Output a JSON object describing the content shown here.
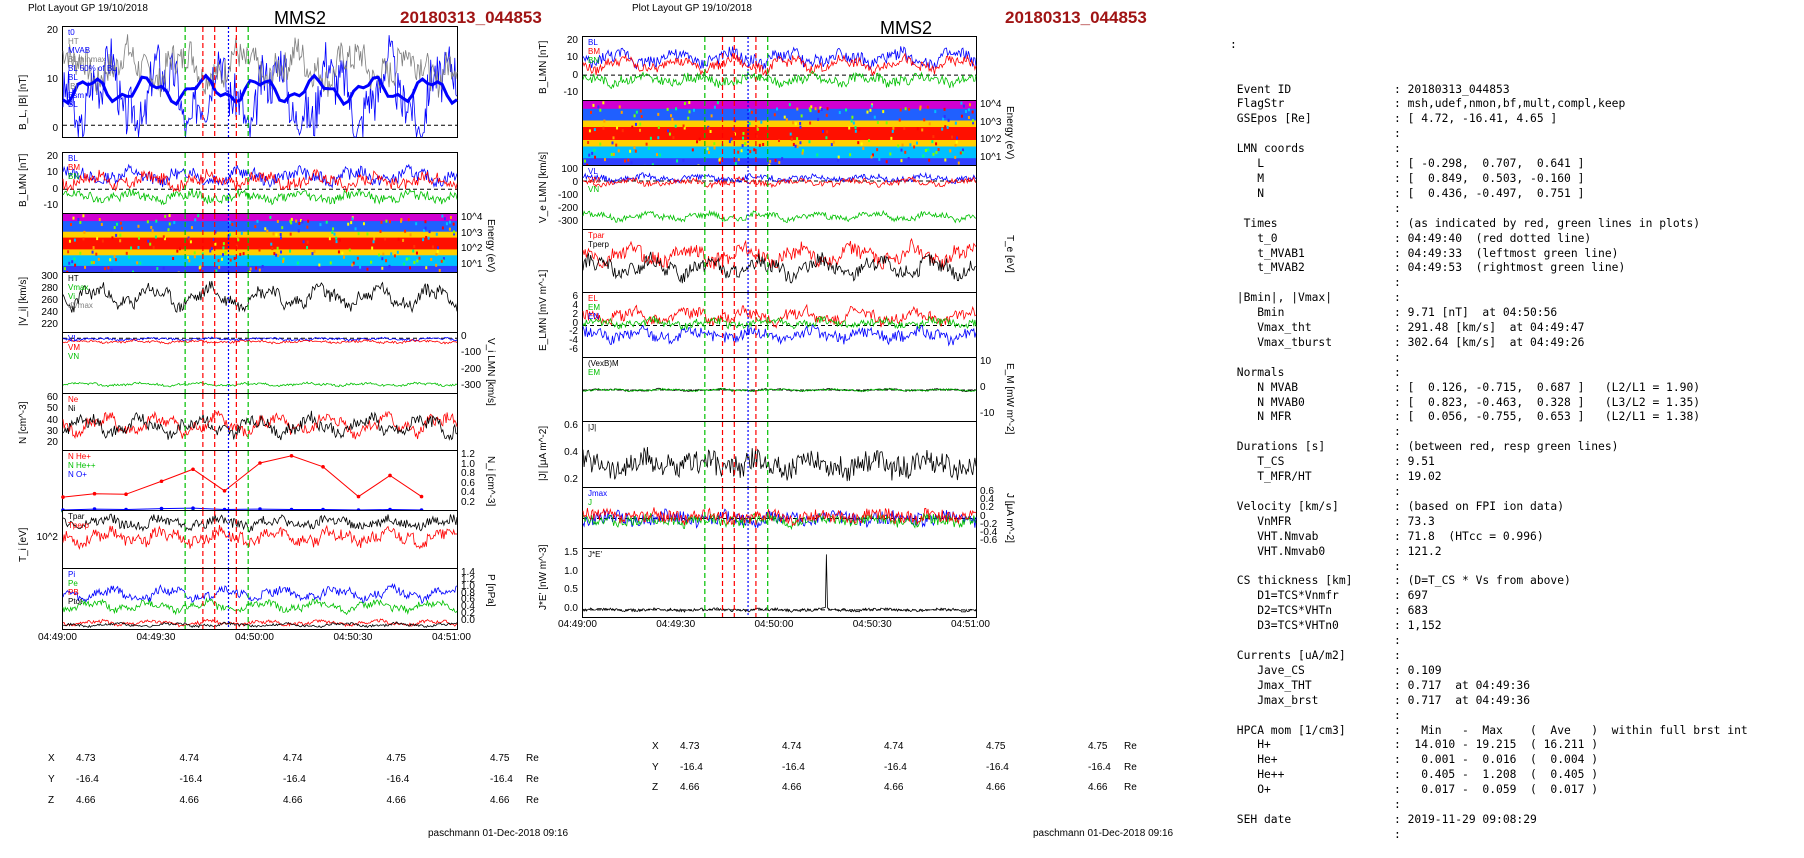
{
  "header": {
    "layout_left": "Plot Layout GP 19/10/2018",
    "layout_mid": "Plot Layout GP 19/10/2018",
    "spacecraft": "MMS2",
    "event": "20180313_044853"
  },
  "footer": {
    "left": "paschmann 01-Dec-2018 09:16",
    "mid": "paschmann 01-Dec-2018 09:16"
  },
  "time_axis": {
    "left_ticks": [
      "04:49:00",
      "04:49:30",
      "04:50:00",
      "04:50:30",
      "04:51:00"
    ],
    "mid_ticks": [
      "04:49:00",
      "04:49:30",
      "04:50:00",
      "04:50:30",
      "04:51:00"
    ]
  },
  "ephemeris": {
    "labels": [
      "X",
      "Y",
      "Z"
    ],
    "unit": "Re",
    "X": [
      "4.73",
      "4.74",
      "4.74",
      "4.75",
      "4.75"
    ],
    "Y": [
      "-16.4",
      "-16.4",
      "-16.4",
      "-16.4",
      "-16.4"
    ],
    "Z": [
      "4.66",
      "4.66",
      "4.66",
      "4.66",
      "4.66"
    ]
  },
  "colors": {
    "red": "#ff0000",
    "green": "#00c000",
    "blue": "#0000ff",
    "black": "#000000",
    "event_red": "#a01414",
    "gray": "#808080",
    "cyan": "#00a0ff",
    "magenta": "#ff00ff"
  },
  "chart_data": [
    {
      "type": "line",
      "id": "BL",
      "ylabel": "B_L, |B| [nT]",
      "yticks": [
        "20",
        "10",
        "0"
      ],
      "ylim": [
        -3,
        25
      ],
      "legend": [
        "t0",
        "HT",
        "MVAB",
        "BLminmax",
        "BL 50% of BL",
        "BL",
        "|B|",
        "Bsm",
        "BL"
      ],
      "series": [
        {
          "name": "BL",
          "color": "#0000ff",
          "mean": 8,
          "amp": 7,
          "noise": 6,
          "seed": 3
        },
        {
          "name": "|B|",
          "color": "#808080",
          "mean": 15,
          "amp": 3,
          "noise": 4,
          "seed": 7
        },
        {
          "name": "Bsm",
          "color": "#0000ff",
          "mean": 9,
          "amp": 2.5,
          "noise": 0,
          "seed": 11,
          "width": 3
        }
      ]
    },
    {
      "type": "line",
      "id": "BLMN",
      "ylabel": "B_LMN [nT]",
      "yticks": [
        "20",
        "10",
        "0",
        "-10"
      ],
      "ylim": [
        -17,
        25
      ],
      "legend": [
        "BL",
        "BM",
        "BN"
      ],
      "series": [
        {
          "name": "BL",
          "color": "#0000ff",
          "mean": 9,
          "amp": 3,
          "noise": 4,
          "seed": 13
        },
        {
          "name": "BM",
          "color": "#ff0000",
          "mean": 6,
          "amp": 3,
          "noise": 4,
          "seed": 17
        },
        {
          "name": "BN",
          "color": "#00c000",
          "mean": -5,
          "amp": 2,
          "noise": 3,
          "seed": 19
        }
      ]
    },
    {
      "type": "heatmap",
      "id": "ion_spec",
      "ylabel": "Energy (eV)",
      "yticks": [
        "10^4",
        "10^3",
        "10^2",
        "10^1"
      ]
    },
    {
      "type": "line",
      "id": "Vi",
      "ylabel": "|V_i| [km/s]",
      "yticks": [
        "300",
        "280",
        "260",
        "240",
        "220"
      ],
      "ylim": [
        205,
        300
      ],
      "legend": [
        "HT",
        "Vmax",
        "Vi",
        "dVmax"
      ],
      "series": [
        {
          "name": "|Vi|",
          "color": "#000000",
          "mean": 262,
          "amp": 12,
          "noise": 10,
          "seed": 23
        }
      ]
    },
    {
      "type": "line",
      "id": "ViLMN",
      "ylabel": "V_i LMN [km/s]",
      "yticks": [
        "0",
        "-100",
        "-200",
        "-300"
      ],
      "ylim": [
        -320,
        30
      ],
      "legend": [
        "VL",
        "VM",
        "VN"
      ],
      "series": [
        {
          "name": "VL",
          "color": "#0000ff",
          "mean": -5,
          "amp": 4,
          "noise": 6,
          "seed": 29
        },
        {
          "name": "VM",
          "color": "#ff0000",
          "mean": -20,
          "amp": 5,
          "noise": 6,
          "seed": 31
        },
        {
          "name": "VN",
          "color": "#00c000",
          "mean": -265,
          "amp": 6,
          "noise": 6,
          "seed": 37
        }
      ]
    },
    {
      "type": "line",
      "id": "N",
      "ylabel": "N [cm^-3]",
      "yticks": [
        "60",
        "50",
        "40",
        "30",
        "20"
      ],
      "ylim": [
        14,
        64
      ],
      "legend": [
        "Ne",
        "Ni"
      ],
      "series": [
        {
          "name": "Ne",
          "color": "#ff0000",
          "mean": 37,
          "amp": 6,
          "noise": 5,
          "seed": 41
        },
        {
          "name": "Ni",
          "color": "#000000",
          "mean": 36,
          "amp": 6,
          "noise": 5,
          "seed": 43
        }
      ]
    },
    {
      "type": "line",
      "id": "HPCA",
      "ylabel": "N_i [cm^-3]",
      "yticks": [
        "1.2",
        "1.0",
        "0.8",
        "0.6",
        "0.4",
        "0.2"
      ],
      "ylim": [
        0,
        1.25
      ],
      "legend": [
        "N He+",
        "N He++",
        "N O+"
      ],
      "series": [
        {
          "name": "N He++",
          "color": "#ff0000",
          "x": [
            0,
            0.08,
            0.16,
            0.25,
            0.33,
            0.41,
            0.5,
            0.58,
            0.66,
            0.75,
            0.83,
            0.91
          ],
          "values": [
            0.29,
            0.36,
            0.35,
            0.62,
            0.87,
            0.42,
            1.0,
            1.15,
            0.92,
            0.3,
            0.74,
            0.3
          ]
        },
        {
          "name": "N He+",
          "color": "#00c000",
          "x": [
            0,
            0.08,
            0.16,
            0.25,
            0.33,
            0.41,
            0.5,
            0.58,
            0.66,
            0.75,
            0.83,
            0.91
          ],
          "values": [
            0.0,
            0.0,
            0.01,
            0.0,
            0.01,
            0.0,
            0.0,
            0.01,
            0.0,
            0.0,
            0.0,
            0.0
          ]
        },
        {
          "name": "N O+",
          "color": "#0000ff",
          "x": [
            0,
            0.08,
            0.16,
            0.25,
            0.33,
            0.41,
            0.5,
            0.58,
            0.66,
            0.75,
            0.83,
            0.91
          ],
          "values": [
            0.02,
            0.04,
            0.03,
            0.05,
            0.06,
            0.03,
            0.04,
            0.03,
            0.03,
            0.02,
            0.03,
            0.02
          ]
        }
      ]
    },
    {
      "type": "line",
      "id": "Ti",
      "ylabel": "T_i [eV]",
      "yticks": [
        "10^2"
      ],
      "ylim": [
        0,
        10
      ],
      "legend": [
        "Tpar",
        "Tperp"
      ],
      "series": [
        {
          "name": "Ti",
          "color": "#000000",
          "mean": 8,
          "amp": 0.6,
          "noise": 0.8,
          "seed": 47
        },
        {
          "name": "Tpar",
          "color": "#ff0000",
          "mean": 5.5,
          "amp": 0.8,
          "noise": 1.0,
          "seed": 53
        }
      ]
    },
    {
      "type": "line",
      "id": "P",
      "ylabel": "P [nPa]",
      "yticks": [
        "1.4",
        "1.2",
        "1.0",
        "0.8",
        "0.6",
        "0.4",
        "0.2",
        "0.0"
      ],
      "ylim": [
        0,
        1.45
      ],
      "legend": [
        "Pi",
        "Pe",
        "PB",
        "Ptot"
      ],
      "series": [
        {
          "name": "Ptot",
          "color": "#0000ff",
          "mean": 0.85,
          "amp": 0.1,
          "noise": 0.1,
          "seed": 59
        },
        {
          "name": "Pi",
          "color": "#00c000",
          "mean": 0.55,
          "amp": 0.08,
          "noise": 0.08,
          "seed": 61
        },
        {
          "name": "Pe",
          "color": "#ff0000",
          "mean": 0.15,
          "amp": 0.04,
          "noise": 0.04,
          "seed": 67
        },
        {
          "name": "PB",
          "color": "#000000",
          "mean": 0.1,
          "amp": 0.03,
          "noise": 0.03,
          "seed": 71
        }
      ]
    },
    {
      "type": "line",
      "id": "m_BLMN",
      "ylabel": "B_LMN [nT]",
      "yticks": [
        "20",
        "10",
        "0",
        "-10"
      ],
      "ylim": [
        -17,
        25
      ],
      "legend": [
        "BL",
        "BM",
        "BN"
      ],
      "series": [
        {
          "name": "BL",
          "color": "#0000ff",
          "mean": 11,
          "amp": 3,
          "noise": 4,
          "seed": 73
        },
        {
          "name": "BM",
          "color": "#ff0000",
          "mean": 7,
          "amp": 3,
          "noise": 3,
          "seed": 79
        },
        {
          "name": "BN",
          "color": "#00c000",
          "mean": -3,
          "amp": 2,
          "noise": 3,
          "seed": 83
        }
      ]
    },
    {
      "type": "heatmap",
      "id": "e_spec",
      "ylabel": "Energy (eV)",
      "yticks": [
        "10^4",
        "10^3",
        "10^2",
        "10^1"
      ]
    },
    {
      "type": "line",
      "id": "VeLMN",
      "ylabel": "V_e LMN [km/s]",
      "yticks": [
        "100",
        "0",
        "-100",
        "-200",
        "-300"
      ],
      "ylim": [
        -360,
        110
      ],
      "legend": [
        "VL",
        "VM",
        "VN"
      ],
      "series": [
        {
          "name": "VL",
          "color": "#0000ff",
          "mean": 20,
          "amp": 15,
          "noise": 20,
          "seed": 89
        },
        {
          "name": "VM",
          "color": "#ff0000",
          "mean": -10,
          "amp": 15,
          "noise": 20,
          "seed": 97
        },
        {
          "name": "VN",
          "color": "#00c000",
          "mean": -260,
          "amp": 20,
          "noise": 20,
          "seed": 101
        }
      ]
    },
    {
      "type": "line",
      "id": "Te",
      "ylabel": "T_e [eV]",
      "yticks": [],
      "ylim": [
        0,
        10
      ],
      "legend": [
        "Tpar",
        "Tperp"
      ],
      "series": [
        {
          "name": "Tpar",
          "color": "#ff0000",
          "mean": 6,
          "amp": 1,
          "noise": 1.1,
          "seed": 103
        },
        {
          "name": "Tperp",
          "color": "#000000",
          "mean": 4,
          "amp": 1,
          "noise": 1.1,
          "seed": 107
        }
      ]
    },
    {
      "type": "line",
      "id": "ELMN",
      "ylabel": "E_LMN [mV m^-1]",
      "yticks": [
        "6",
        "4",
        "2",
        "0",
        "-2",
        "-4",
        "-6"
      ],
      "ylim": [
        -7,
        7
      ],
      "legend": [
        "EL",
        "EM",
        "EN"
      ],
      "series": [
        {
          "name": "EM",
          "color": "#ff0000",
          "mean": 2,
          "amp": 1,
          "noise": 1.2,
          "seed": 109
        },
        {
          "name": "EL",
          "color": "#00c000",
          "mean": 0.5,
          "amp": 0.5,
          "noise": 0.8,
          "seed": 113
        },
        {
          "name": "EN",
          "color": "#0000ff",
          "mean": -2,
          "amp": 0.8,
          "noise": 1.2,
          "seed": 127
        }
      ]
    },
    {
      "type": "line",
      "id": "EM",
      "ylabel": "E_M [mW m^-2]",
      "yticks": [
        "10",
        "0",
        "-10"
      ],
      "ylim": [
        -15,
        15
      ],
      "legend": [
        "(VexB)M",
        "EM"
      ],
      "series": [
        {
          "name": "(VexB)M",
          "color": "#000000",
          "mean": 0,
          "amp": 0.3,
          "noise": 0.4,
          "seed": 131
        },
        {
          "name": "EM",
          "color": "#00c000",
          "mean": 0,
          "amp": 0.3,
          "noise": 0.4,
          "seed": 137
        }
      ]
    },
    {
      "type": "line",
      "id": "Jmag",
      "ylabel": "|J| [μA m^-2]",
      "yticks": [
        "0.6",
        "0.4",
        "0.2"
      ],
      "ylim": [
        0,
        0.7
      ],
      "legend": [
        "|J|"
      ],
      "series": [
        {
          "name": "|J|",
          "color": "#000000",
          "mean": 0.25,
          "amp": 0.05,
          "noise": 0.12,
          "seed": 139
        }
      ]
    },
    {
      "type": "line",
      "id": "JLMN",
      "ylabel": "J [μA m^-2]",
      "yticks": [
        "0.6",
        "0.4",
        "0.2",
        "0",
        "-0.2",
        "-0.4",
        "-0.6"
      ],
      "ylim": [
        -0.7,
        0.7
      ],
      "legend": [
        "Jmax",
        "J"
      ],
      "series": [
        {
          "name": "JL",
          "color": "#0000ff",
          "mean": 0,
          "amp": 0.05,
          "noise": 0.15,
          "seed": 149
        },
        {
          "name": "JN",
          "color": "#00c000",
          "mean": -0.05,
          "amp": 0.05,
          "noise": 0.12,
          "seed": 151
        },
        {
          "name": "JM",
          "color": "#ff0000",
          "mean": 0.05,
          "amp": 0.05,
          "noise": 0.15,
          "seed": 157
        }
      ]
    },
    {
      "type": "line",
      "id": "JE",
      "ylabel": "J*E' [nW m^-3]",
      "yticks": [
        "1.5",
        "1.0",
        "0.5",
        "0.0"
      ],
      "ylim": [
        -0.2,
        1.7
      ],
      "legend": [
        "J*E'"
      ],
      "series": [
        {
          "name": "J*E'",
          "color": "#000000",
          "mean": 0,
          "amp": 0.02,
          "noise": 0.04,
          "seed": 163,
          "spike": [
            0.62,
            1.55
          ]
        }
      ]
    }
  ],
  "info": {
    "title_colon": ":",
    "rows": [
      [
        "Event ID",
        ": 20180313_044853"
      ],
      [
        "FlagStr",
        ": msh,udef,nmon,bf,mult,compl,keep"
      ],
      [
        "GSEpos [Re]",
        ": [ 4.72, -16.41, 4.65 ]"
      ],
      [
        "",
        ":"
      ],
      [
        "LMN coords",
        ":"
      ],
      [
        "   L",
        ": [ -0.298,  0.707,  0.641 ]"
      ],
      [
        "   M",
        ": [  0.849,  0.503, -0.160 ]"
      ],
      [
        "   N",
        ": [  0.436, -0.497,  0.751 ]"
      ],
      [
        "",
        ":"
      ],
      [
        " Times",
        ": (as indicated by red, green lines in plots)"
      ],
      [
        "   t_0",
        ": 04:49:40  (red dotted line)"
      ],
      [
        "   t_MVAB1",
        ": 04:49:33  (leftmost green line)"
      ],
      [
        "   t_MVAB2",
        ": 04:49:53  (rightmost green line)"
      ],
      [
        "",
        ":"
      ],
      [
        "|Bmin|, |Vmax|",
        ":"
      ],
      [
        "   Bmin",
        ": 9.71 [nT]  at 04:50:56"
      ],
      [
        "   Vmax_tht",
        ": 291.48 [km/s]  at 04:49:47"
      ],
      [
        "   Vmax_tburst",
        ": 302.64 [km/s]  at 04:49:26"
      ],
      [
        "",
        ":"
      ],
      [
        "Normals",
        ":"
      ],
      [
        "   N MVAB",
        ": [  0.126, -0.715,  0.687 ]   (L2/L1 = 1.90)"
      ],
      [
        "   N MVAB0",
        ": [  0.823, -0.463,  0.328 ]   (L3/L2 = 1.35)"
      ],
      [
        "   N MFR",
        ": [  0.056, -0.755,  0.653 ]   (L2/L1 = 1.38)"
      ],
      [
        "",
        ":"
      ],
      [
        "Durations [s]",
        ": (between red, resp green lines)"
      ],
      [
        "   T_CS",
        ": 9.51"
      ],
      [
        "   T_MFR/HT",
        ": 19.02"
      ],
      [
        "",
        ":"
      ],
      [
        "Velocity [km/s]",
        ": (based on FPI ion data)"
      ],
      [
        "   VnMFR",
        ": 73.3"
      ],
      [
        "   VHT.Nmvab",
        ": 71.8  (HTcc = 0.996)"
      ],
      [
        "   VHT.Nmvab0",
        ": 121.2"
      ],
      [
        "",
        ":"
      ],
      [
        "CS thickness [km]",
        ": (D=T_CS * Vs from above)"
      ],
      [
        "   D1=TCS*Vnmfr",
        ": 697"
      ],
      [
        "   D2=TCS*VHTn",
        ": 683"
      ],
      [
        "   D3=TCS*VHTn0",
        ": 1,152"
      ],
      [
        "",
        ":"
      ],
      [
        "Currents [uA/m2]",
        ":"
      ],
      [
        "   Jave_CS",
        ": 0.109"
      ],
      [
        "   Jmax_THT",
        ": 0.717  at 04:49:36"
      ],
      [
        "   Jmax_brst",
        ": 0.717  at 04:49:36"
      ],
      [
        "",
        ":"
      ],
      [
        "HPCA mom [1/cm3]",
        ":   Min   -  Max    (  Ave   )  within full brst int"
      ],
      [
        "   H+",
        ":  14.010 - 19.215  ( 16.211 )"
      ],
      [
        "   He+",
        ":   0.001 -  0.016  (  0.004 )"
      ],
      [
        "   He++",
        ":   0.405 -  1.208  (  0.405 )"
      ],
      [
        "   O+",
        ":   0.017 -  0.059  (  0.017 )"
      ],
      [
        "",
        ":"
      ],
      [
        "SEH date",
        ": 2019-11-29 09:08:29"
      ],
      [
        "",
        ":"
      ]
    ]
  }
}
